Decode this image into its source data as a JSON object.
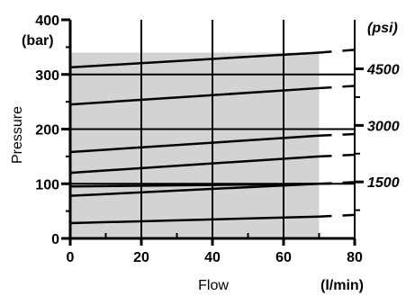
{
  "chart_data": {
    "type": "line",
    "xlabel": "Flow",
    "x_unit": "(l/min)",
    "ylabel": "Pressure",
    "y_unit": "(bar)",
    "secondary_y_unit": "(psi)",
    "xlim": [
      0,
      80
    ],
    "ylim": [
      0,
      400
    ],
    "x_ticks": [
      0,
      20,
      40,
      60,
      80
    ],
    "y_ticks": [
      0,
      100,
      200,
      300,
      400
    ],
    "secondary_y_ticks": [
      {
        "label": "1500",
        "bar": 103.4
      },
      {
        "label": "3000",
        "bar": 206.8
      },
      {
        "label": "4500",
        "bar": 310.3
      }
    ],
    "operating_range": {
      "x_max": 70,
      "y_max": 340,
      "fill": "#d3d3d3"
    },
    "series": [
      {
        "x": [
          0,
          70
        ],
        "y": [
          28,
          40
        ],
        "dashed_to": [
          80,
          43
        ]
      },
      {
        "x": [
          0,
          70
        ],
        "y": [
          78,
          100
        ],
        "dashed_to": [
          80,
          103
        ]
      },
      {
        "x": [
          0,
          70
        ],
        "y": [
          95,
          100
        ],
        "dashed_to": [
          80,
          101
        ]
      },
      {
        "x": [
          0,
          70
        ],
        "y": [
          120,
          150
        ],
        "dashed_to": [
          80,
          153
        ]
      },
      {
        "x": [
          0,
          70
        ],
        "y": [
          158,
          188
        ],
        "dashed_to": [
          80,
          191
        ]
      },
      {
        "x": [
          0,
          70
        ],
        "y": [
          245,
          275
        ],
        "dashed_to": [
          80,
          279
        ]
      },
      {
        "x": [
          0,
          70
        ],
        "y": [
          313,
          340
        ],
        "dashed_to": [
          80,
          345
        ]
      }
    ],
    "grid": true,
    "colors": {
      "line": "#000000",
      "grid": "#000000",
      "fill": "#d3d3d3"
    }
  }
}
